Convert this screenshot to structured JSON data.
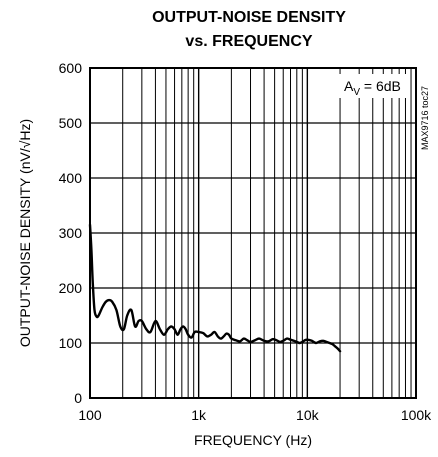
{
  "chart_data": {
    "type": "line",
    "title_line1": "OUTPUT-NOISE DENSITY",
    "title_line2": "vs. FREQUENCY",
    "xlabel": "FREQUENCY (Hz)",
    "ylabel": "OUTPUT-NOISE DENSITY (nV/√Hz)",
    "x_scale": "log",
    "xlim": [
      100,
      100000
    ],
    "ylim": [
      0,
      600
    ],
    "x_ticks": [
      {
        "value": 100,
        "label": "100"
      },
      {
        "value": 1000,
        "label": "1k"
      },
      {
        "value": 10000,
        "label": "10k"
      },
      {
        "value": 100000,
        "label": "100k"
      }
    ],
    "y_ticks": [
      {
        "value": 0,
        "label": "0"
      },
      {
        "value": 100,
        "label": "100"
      },
      {
        "value": 200,
        "label": "200"
      },
      {
        "value": 300,
        "label": "300"
      },
      {
        "value": 400,
        "label": "400"
      },
      {
        "value": 500,
        "label": "500"
      },
      {
        "value": 600,
        "label": "600"
      }
    ],
    "grid": true,
    "annotation": "AV = 6dB",
    "annotation_parts": {
      "main": "A",
      "sub": "V",
      "rest": " = 6dB"
    },
    "code": "MAX9716 toc27",
    "series": [
      {
        "x": [
          100,
          103,
          106,
          110,
          115,
          120,
          130,
          140,
          150,
          160,
          175,
          190,
          205,
          220,
          240,
          260,
          280,
          300,
          330,
          360,
          400,
          440,
          480,
          520,
          560,
          600,
          640,
          680,
          720,
          760,
          800,
          860,
          920,
          1000,
          1100,
          1200,
          1300,
          1400,
          1500,
          1600,
          1700,
          1800,
          1900,
          2000,
          2200,
          2400,
          2600,
          2800,
          3000,
          3300,
          3600,
          4000,
          4400,
          4800,
          5200,
          5600,
          6000,
          6500,
          7000,
          7500,
          8000,
          8500,
          9000,
          9500,
          10000,
          11000,
          12000,
          13000,
          14000,
          15000,
          16000,
          17000,
          18000,
          19000,
          20000
        ],
        "y": [
          315,
          270,
          210,
          160,
          148,
          150,
          165,
          175,
          178,
          175,
          160,
          130,
          125,
          150,
          160,
          130,
          140,
          140,
          125,
          120,
          140,
          125,
          115,
          125,
          130,
          125,
          115,
          125,
          130,
          125,
          115,
          110,
          120,
          120,
          118,
          112,
          115,
          120,
          112,
          108,
          112,
          117,
          115,
          108,
          105,
          103,
          108,
          105,
          102,
          105,
          108,
          104,
          103,
          107,
          105,
          102,
          104,
          108,
          106,
          104,
          102,
          100,
          102,
          105,
          106,
          104,
          100,
          103,
          104,
          102,
          100,
          98,
          94,
          90,
          85
        ]
      }
    ]
  }
}
